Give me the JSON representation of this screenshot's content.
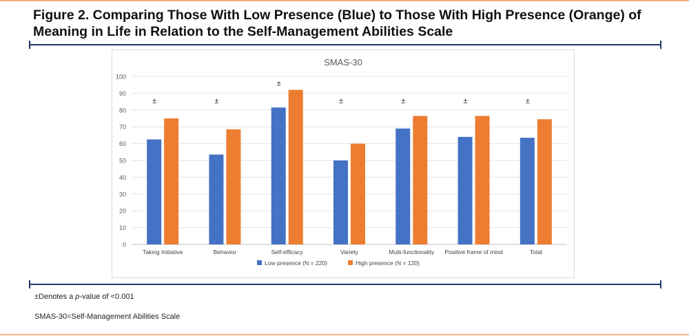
{
  "figure": {
    "title": "Figure 2. Comparing Those With Low Presence (Blue) to Those With High Presence (Orange) of Meaning in Life in Relation to the Self-Management Abilities Scale",
    "footnote_symbol_text": "±Denotes a ",
    "footnote_italic": "p",
    "footnote_rest": "-value of <0.001",
    "abbreviation_note": "SMAS-30=Self-Management Abilities Scale"
  },
  "colors": {
    "low": "#4472c4",
    "high": "#ed7d31",
    "rule": "#1f3864",
    "accent_line": "#f4b183"
  },
  "chart_data": {
    "type": "bar",
    "title": "SMAS-30",
    "categories": [
      "Taking Initiative",
      "Behavior",
      "Self-efficacy",
      "Variety",
      "Multi-functionality",
      "Positive frame of mind",
      "Total"
    ],
    "series": [
      {
        "name": "Low presence (N = 220)",
        "values": [
          62.5,
          53.5,
          81.5,
          50,
          69,
          64,
          63.5
        ]
      },
      {
        "name": "High presence (N = 120)",
        "values": [
          75,
          68.5,
          92,
          60,
          76.5,
          76.5,
          74.5
        ]
      }
    ],
    "annotations": [
      "±",
      "±",
      "±",
      "±",
      "±",
      "±",
      "±"
    ],
    "ylim": [
      0,
      100
    ],
    "yticks": [
      "0",
      "10",
      "20",
      "30",
      "40",
      "50",
      "60",
      "70",
      "80",
      "90",
      "100"
    ],
    "xlabel": "",
    "ylabel": "",
    "grid": true,
    "legend_position": "bottom"
  }
}
